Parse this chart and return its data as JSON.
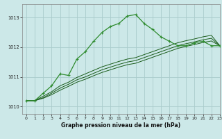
{
  "title": "Graphe pression niveau de la mer (hPa)",
  "bg_color": "#cce8e8",
  "grid_color": "#aacccc",
  "line_color_dark": "#1a5c1a",
  "line_color_light": "#2e8b2e",
  "xlim": [
    -0.5,
    23
  ],
  "ylim": [
    1009.75,
    1013.45
  ],
  "xticks": [
    0,
    1,
    2,
    3,
    4,
    5,
    6,
    7,
    8,
    9,
    10,
    11,
    12,
    13,
    14,
    15,
    16,
    17,
    18,
    19,
    20,
    21,
    22,
    23
  ],
  "yticks": [
    1010,
    1011,
    1012,
    1013
  ],
  "main_x": [
    0,
    1,
    2,
    3,
    4,
    5,
    6,
    7,
    8,
    9,
    10,
    11,
    12,
    13,
    14,
    15,
    16,
    17,
    18,
    19,
    20,
    21,
    22,
    23
  ],
  "main_y": [
    1010.2,
    1010.2,
    1010.45,
    1010.7,
    1011.1,
    1011.05,
    1011.6,
    1011.85,
    1012.2,
    1012.5,
    1012.7,
    1012.8,
    1013.05,
    1013.1,
    1012.8,
    1012.6,
    1012.35,
    1012.2,
    1012.05,
    1012.05,
    1012.15,
    1012.2,
    1012.05,
    1012.05
  ],
  "sub1_x": [
    0,
    1,
    2,
    3,
    4,
    5,
    6,
    7,
    8,
    9,
    10,
    11,
    12,
    13,
    14,
    15,
    16,
    17,
    18,
    19,
    20,
    21,
    22,
    23
  ],
  "sub1_y": [
    1010.2,
    1010.2,
    1010.35,
    1010.5,
    1010.7,
    1010.82,
    1010.98,
    1011.1,
    1011.22,
    1011.34,
    1011.43,
    1011.52,
    1011.6,
    1011.65,
    1011.75,
    1011.85,
    1011.95,
    1012.05,
    1012.15,
    1012.22,
    1012.28,
    1012.35,
    1012.4,
    1012.05
  ],
  "sub2_x": [
    0,
    1,
    2,
    3,
    4,
    5,
    6,
    7,
    8,
    9,
    10,
    11,
    12,
    13,
    14,
    15,
    16,
    17,
    18,
    19,
    20,
    21,
    22,
    23
  ],
  "sub2_y": [
    1010.2,
    1010.2,
    1010.3,
    1010.45,
    1010.62,
    1010.75,
    1010.9,
    1011.0,
    1011.12,
    1011.24,
    1011.33,
    1011.42,
    1011.5,
    1011.55,
    1011.65,
    1011.75,
    1011.85,
    1011.95,
    1012.05,
    1012.12,
    1012.18,
    1012.25,
    1012.3,
    1012.05
  ],
  "sub3_x": [
    0,
    1,
    2,
    3,
    4,
    5,
    6,
    7,
    8,
    9,
    10,
    11,
    12,
    13,
    14,
    15,
    16,
    17,
    18,
    19,
    20,
    21,
    22,
    23
  ],
  "sub3_y": [
    1010.2,
    1010.2,
    1010.28,
    1010.4,
    1010.55,
    1010.68,
    1010.82,
    1010.92,
    1011.04,
    1011.15,
    1011.24,
    1011.33,
    1011.41,
    1011.46,
    1011.56,
    1011.66,
    1011.76,
    1011.86,
    1011.96,
    1012.03,
    1012.09,
    1012.16,
    1012.21,
    1012.05
  ]
}
